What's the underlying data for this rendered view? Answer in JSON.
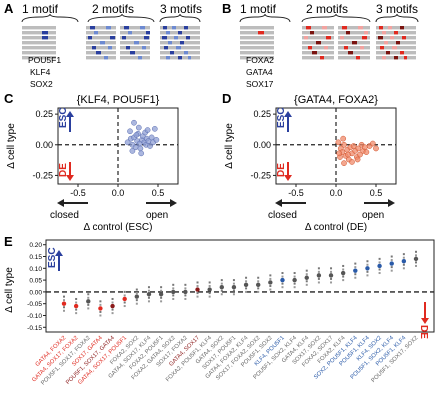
{
  "panels": {
    "A": {
      "letter": "A",
      "groups": [
        "1 motif",
        "2 motifs",
        "3 motifs"
      ],
      "genes": [
        "POU5F1",
        "KLF4",
        "SOX2"
      ]
    },
    "B": {
      "letter": "B",
      "groups": [
        "1 motif",
        "2 motifs",
        "3 motifs"
      ],
      "genes": [
        "FOXA2",
        "GATA4",
        "SOX17"
      ]
    },
    "C": {
      "letter": "C",
      "title": "{KLF4, POU5F1}",
      "xlabel": "Δ control (ESC)",
      "ylabel": "Δ cell type",
      "closed": "closed",
      "open": "open",
      "esc": "ESC",
      "de": "DE",
      "yticks": [
        "0.25",
        "0.00",
        "-0.25"
      ],
      "xticks": [
        "-0.5",
        "0.0",
        "0.5"
      ]
    },
    "D": {
      "letter": "D",
      "title": "{GATA4, FOXA2}",
      "xlabel": "Δ control (DE)",
      "ylabel": "Δ cell type",
      "closed": "closed",
      "open": "open",
      "esc": "ESC",
      "de": "DE",
      "yticks": [
        "0.25",
        "0.00",
        "-0.25"
      ],
      "xticks": [
        "-0.5",
        "0.0",
        "0.5"
      ]
    },
    "E": {
      "letter": "E",
      "ylabel": "Δ cell type",
      "esc": "ESC",
      "de": "DE",
      "yticks": [
        "0.20",
        "0.15",
        "0.10",
        "0.05",
        "0.00",
        "-0.05",
        "-0.10",
        "-0.15"
      ]
    }
  },
  "colors": {
    "esc_blue": "#2a3f9e",
    "de_red": "#e02a20",
    "scatter_c": "#8f9fd4",
    "scatter_d": "#f08a6a",
    "gray": "#888888"
  },
  "chart_data": [
    {
      "type": "scatter",
      "title": "{KLF4, POU5F1}",
      "xlabel": "Δ control (ESC)",
      "ylabel": "Δ cell type",
      "xlim": [
        -0.75,
        0.75
      ],
      "ylim": [
        -0.32,
        0.3
      ],
      "points": [
        [
          0.12,
          0.02
        ],
        [
          0.16,
          0.05
        ],
        [
          0.18,
          0.0
        ],
        [
          0.2,
          0.06
        ],
        [
          0.22,
          -0.02
        ],
        [
          0.24,
          0.03
        ],
        [
          0.25,
          0.09
        ],
        [
          0.27,
          0.01
        ],
        [
          0.28,
          -0.03
        ],
        [
          0.3,
          0.04
        ],
        [
          0.31,
          0.07
        ],
        [
          0.33,
          0.02
        ],
        [
          0.35,
          0.0
        ],
        [
          0.36,
          0.05
        ],
        [
          0.38,
          0.03
        ],
        [
          0.4,
          -0.01
        ],
        [
          0.42,
          0.06
        ],
        [
          0.44,
          0.02
        ],
        [
          0.46,
          0.13
        ],
        [
          0.2,
          0.18
        ],
        [
          0.26,
          0.14
        ],
        [
          0.34,
          0.1
        ],
        [
          0.18,
          -0.05
        ],
        [
          0.29,
          -0.07
        ],
        [
          0.48,
          0.04
        ],
        [
          0.15,
          0.11
        ],
        [
          0.37,
          0.12
        ],
        [
          0.23,
          0.08
        ]
      ]
    },
    {
      "type": "scatter",
      "title": "{GATA4, FOXA2}",
      "xlabel": "Δ control (DE)",
      "ylabel": "Δ cell type",
      "xlim": [
        -0.75,
        0.75
      ],
      "ylim": [
        -0.32,
        0.3
      ],
      "points": [
        [
          0.03,
          0.02
        ],
        [
          0.06,
          -0.03
        ],
        [
          0.08,
          -0.06
        ],
        [
          0.1,
          0.0
        ],
        [
          0.12,
          -0.09
        ],
        [
          0.14,
          -0.04
        ],
        [
          0.16,
          -0.12
        ],
        [
          0.18,
          -0.02
        ],
        [
          0.2,
          -0.07
        ],
        [
          0.22,
          -0.01
        ],
        [
          0.24,
          -0.05
        ],
        [
          0.26,
          -0.1
        ],
        [
          0.28,
          -0.03
        ],
        [
          0.3,
          -0.08
        ],
        [
          0.32,
          0.0
        ],
        [
          0.34,
          -0.05
        ],
        [
          0.36,
          -0.02
        ],
        [
          0.38,
          -0.06
        ],
        [
          0.42,
          -0.01
        ],
        [
          0.46,
          0.01
        ],
        [
          0.5,
          -0.03
        ],
        [
          0.05,
          -0.1
        ],
        [
          0.1,
          -0.15
        ],
        [
          0.15,
          -0.08
        ],
        [
          0.2,
          -0.14
        ],
        [
          0.09,
          0.05
        ],
        [
          0.27,
          -0.12
        ],
        [
          0.04,
          -0.07
        ]
      ]
    },
    {
      "type": "scatter",
      "ylabel": "Δ cell type",
      "ylim": [
        -0.17,
        0.22
      ],
      "categories": [
        "GATA4, FOXA2",
        "GATA4, SOX17, FOXA2",
        "POU5F1, SOX17, FOXA2",
        "SOX17, GATA4",
        "POU5F1, SOX17, GATA4",
        "GATA4, SOX17, POU5F1",
        "FOXA2, SOX2",
        "GATA4, SOX17, KLF4",
        "FOXA2, POU5F1",
        "FOXA2, GATA4, SOX2",
        "SOX17, FOXA2",
        "GATA4, SOX17",
        "FOXA2, POU5F1, KLF4",
        "GATA4, SOX2",
        "SOX17, POU5F1",
        "GATA4, FOXA2, KLF4",
        "SOX17, FOXA2, SOX2",
        "POU5F1, SOX2",
        "KLF4, POU5F1",
        "POU5F1, SOX2, KLF4",
        "GATA4, KLF4",
        "SOX17, SOX2",
        "FOXA2, SOX17",
        "FOXA2, KLF4",
        "SOX2, POU5F1, KLF4",
        "POU5F1, KLF4",
        "KLF4, SOX2",
        "POU5F1, SOX2, KLF4",
        "POU5F1, KLF4",
        "POU5F1, SOX17, SOX2"
      ],
      "label_colors": [
        "red",
        "red",
        "gray",
        "red",
        "darkred",
        "red",
        "gray",
        "gray",
        "gray",
        "gray",
        "gray",
        "darkred",
        "gray",
        "gray",
        "gray",
        "gray",
        "gray",
        "gray",
        "blue",
        "gray",
        "gray",
        "gray",
        "gray",
        "gray",
        "blue",
        "blue",
        "blue",
        "blue",
        "blue",
        "gray"
      ],
      "values": [
        -0.05,
        -0.06,
        -0.04,
        -0.07,
        -0.06,
        -0.03,
        -0.02,
        -0.01,
        -0.01,
        0.0,
        0.0,
        0.01,
        0.01,
        0.02,
        0.02,
        0.03,
        0.03,
        0.04,
        0.05,
        0.05,
        0.06,
        0.07,
        0.07,
        0.08,
        0.09,
        0.1,
        0.11,
        0.12,
        0.13,
        0.14
      ]
    }
  ]
}
